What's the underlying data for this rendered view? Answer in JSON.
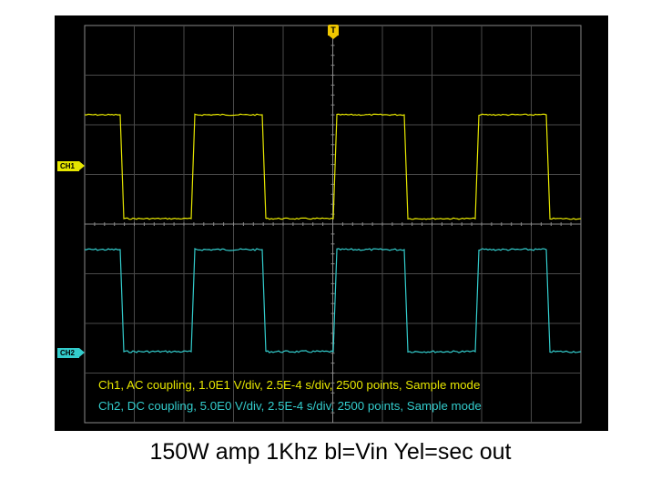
{
  "scope": {
    "trigger_label": "T",
    "ch1_marker": "CH1",
    "ch2_marker": "CH2",
    "ch1_info": "Ch1, AC coupling, 1.0E1 V/div, 2.5E-4 s/div, 2500 points, Sample mode",
    "ch2_info": "Ch2, DC coupling, 5.0E0 V/div, 2.5E-4 s/div, 2500 points, Sample mode",
    "colors": {
      "background": "#000000",
      "grid": "#4a4a4a",
      "ch1": "#e6e600",
      "ch2": "#33cccc",
      "trigger": "#f0c800"
    }
  },
  "caption": "150W amp 1Khz bl=Vin Yel=sec out"
}
